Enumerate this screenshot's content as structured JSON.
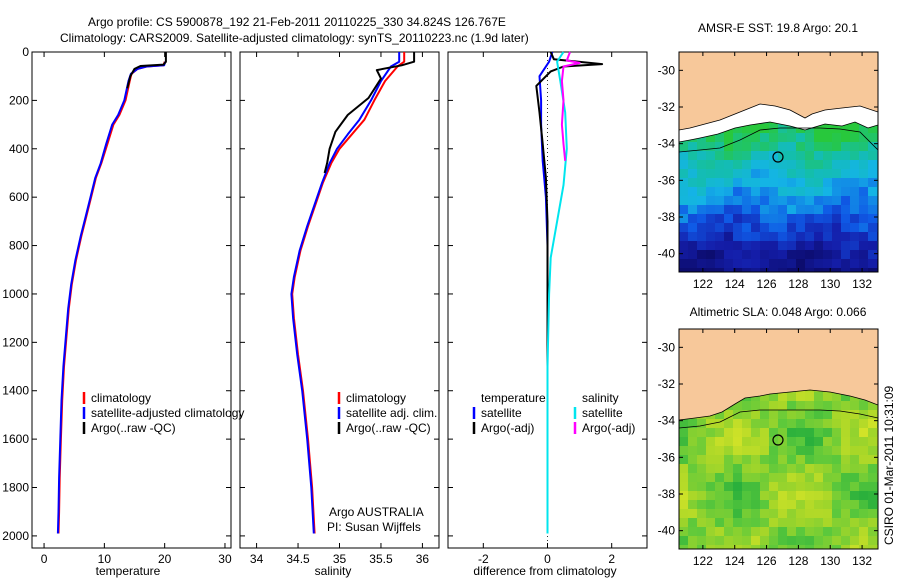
{
  "header": {
    "line1": "Argo profile: CS 5900878_192 21-Feb-2011 20110225_330 34.824S 126.767E",
    "line2": "Climatology: CARS2009. Satellite-adjusted climatology: synTS_20110223.nc (1.9d later)"
  },
  "colors": {
    "climatology": "#ff0000",
    "satellite": "#0000ff",
    "argo": "#000000",
    "sal_satellite": "#00e5ee",
    "sal_argo": "#ff00ff",
    "land": "#f7c89a"
  },
  "footer_note": "CSIRO 01-Mar-2011 10:31:09",
  "chart_data": [
    {
      "type": "line",
      "id": "temperature",
      "xlabel": "temperature",
      "ylabel": "",
      "xlim": [
        -2,
        31
      ],
      "ylim": [
        2050,
        0
      ],
      "y_reversed": true,
      "xticks": [
        "0",
        "10",
        "20",
        "30"
      ],
      "yticks": [
        "0",
        "200",
        "400",
        "600",
        "800",
        "1000",
        "1200",
        "1400",
        "1600",
        "1800",
        "2000"
      ],
      "legend": [
        "climatology",
        "satellite-adjusted climatology",
        "Argo(..raw -QC)"
      ],
      "series": [
        {
          "name": "climatology",
          "color": "#ff0000",
          "points": [
            [
              20.0,
              40
            ],
            [
              19.8,
              55
            ],
            [
              17.0,
              60
            ],
            [
              15.5,
              70
            ],
            [
              14.5,
              90
            ],
            [
              14.2,
              120
            ],
            [
              13.5,
              200
            ],
            [
              12.5,
              260
            ],
            [
              11.5,
              300
            ],
            [
              10.5,
              380
            ],
            [
              9.5,
              460
            ],
            [
              8.6,
              520
            ],
            [
              7.8,
              600
            ],
            [
              7.0,
              680
            ],
            [
              6.2,
              760
            ],
            [
              5.3,
              860
            ],
            [
              4.6,
              960
            ],
            [
              4.1,
              1060
            ],
            [
              3.7,
              1180
            ],
            [
              3.3,
              1300
            ],
            [
              3.0,
              1440
            ],
            [
              2.8,
              1600
            ],
            [
              2.6,
              1760
            ],
            [
              2.5,
              1900
            ],
            [
              2.4,
              1990
            ]
          ]
        },
        {
          "name": "satellite-adjusted climatology",
          "color": "#0000ff",
          "points": [
            [
              20.1,
              40
            ],
            [
              19.9,
              55
            ],
            [
              17.0,
              60
            ],
            [
              15.5,
              70
            ],
            [
              14.4,
              90
            ],
            [
              14.0,
              120
            ],
            [
              13.3,
              200
            ],
            [
              12.3,
              260
            ],
            [
              11.3,
              300
            ],
            [
              10.3,
              380
            ],
            [
              9.4,
              460
            ],
            [
              8.5,
              520
            ],
            [
              7.7,
              600
            ],
            [
              6.9,
              680
            ],
            [
              6.1,
              760
            ],
            [
              5.2,
              860
            ],
            [
              4.5,
              960
            ],
            [
              4.0,
              1060
            ],
            [
              3.6,
              1180
            ],
            [
              3.2,
              1300
            ],
            [
              2.9,
              1440
            ],
            [
              2.7,
              1600
            ],
            [
              2.5,
              1760
            ],
            [
              2.4,
              1900
            ],
            [
              2.3,
              1990
            ]
          ]
        },
        {
          "name": "Argo(..raw -QC)",
          "color": "#000000",
          "points": [
            [
              20.2,
              0
            ],
            [
              20.2,
              40
            ],
            [
              19.8,
              52
            ],
            [
              16.0,
              58
            ],
            [
              15.0,
              70
            ],
            [
              14.3,
              100
            ],
            [
              13.8,
              150
            ]
          ]
        }
      ]
    },
    {
      "type": "line",
      "id": "salinity",
      "xlabel": "salinity",
      "ylabel": "",
      "xlim": [
        33.8,
        36.2
      ],
      "ylim": [
        2050,
        0
      ],
      "y_reversed": true,
      "xticks": [
        "34",
        "34.5",
        "35",
        "35.5",
        "36"
      ],
      "legend": [
        "climatology",
        "satellite adj. clim.",
        "Argo(..raw -QC)"
      ],
      "annotation": [
        "Argo AUSTRALIA",
        "PI: Susan Wijffels"
      ],
      "series": [
        {
          "name": "climatology",
          "color": "#ff0000",
          "points": [
            [
              35.78,
              0
            ],
            [
              35.78,
              40
            ],
            [
              35.7,
              60
            ],
            [
              35.55,
              120
            ],
            [
              35.42,
              200
            ],
            [
              35.3,
              280
            ],
            [
              35.15,
              340
            ],
            [
              35.0,
              400
            ],
            [
              34.9,
              460
            ],
            [
              34.8,
              540
            ],
            [
              34.72,
              620
            ],
            [
              34.62,
              720
            ],
            [
              34.53,
              820
            ],
            [
              34.46,
              930
            ],
            [
              34.43,
              1000
            ],
            [
              34.45,
              1100
            ],
            [
              34.5,
              1250
            ],
            [
              34.56,
              1400
            ],
            [
              34.62,
              1600
            ],
            [
              34.67,
              1800
            ],
            [
              34.7,
              1990
            ]
          ]
        },
        {
          "name": "satellite adj. clim.",
          "color": "#0000ff",
          "points": [
            [
              35.72,
              0
            ],
            [
              35.72,
              40
            ],
            [
              35.62,
              60
            ],
            [
              35.5,
              120
            ],
            [
              35.38,
              200
            ],
            [
              35.24,
              280
            ],
            [
              35.1,
              340
            ],
            [
              34.97,
              400
            ],
            [
              34.88,
              460
            ],
            [
              34.79,
              540
            ],
            [
              34.71,
              620
            ],
            [
              34.61,
              720
            ],
            [
              34.52,
              820
            ],
            [
              34.45,
              930
            ],
            [
              34.42,
              1000
            ],
            [
              34.44,
              1100
            ],
            [
              34.49,
              1250
            ],
            [
              34.55,
              1400
            ],
            [
              34.61,
              1600
            ],
            [
              34.66,
              1800
            ],
            [
              34.69,
              1990
            ]
          ]
        },
        {
          "name": "Argo(..raw -QC)",
          "color": "#000000",
          "points": [
            [
              35.9,
              0
            ],
            [
              35.9,
              40
            ],
            [
              35.75,
              55
            ],
            [
              35.45,
              75
            ],
            [
              35.5,
              110
            ],
            [
              35.35,
              190
            ],
            [
              35.1,
              260
            ],
            [
              34.95,
              330
            ],
            [
              34.88,
              400
            ],
            [
              34.85,
              460
            ],
            [
              34.82,
              500
            ]
          ]
        }
      ]
    },
    {
      "type": "line",
      "id": "difference",
      "xlabel": "difference from climatology",
      "ylabel": "",
      "xlim": [
        -3.1,
        3.1
      ],
      "ylim": [
        2050,
        0
      ],
      "y_reversed": true,
      "xticks": [
        "-2",
        "0",
        "2"
      ],
      "legend": [
        "temperature",
        "satellite",
        "Argo(-adj)",
        "salinity",
        "satellite",
        "Argo(-adj)"
      ],
      "series": [
        {
          "name": "temperature satellite",
          "color": "#0000ff",
          "points": [
            [
              0.15,
              0
            ],
            [
              0.05,
              40
            ],
            [
              -0.25,
              100
            ],
            [
              -0.2,
              200
            ],
            [
              -0.2,
              300
            ],
            [
              -0.15,
              450
            ],
            [
              -0.05,
              600
            ],
            [
              0.0,
              800
            ],
            [
              0.0,
              1000
            ],
            [
              0.0,
              1200
            ],
            [
              0.0,
              1500
            ],
            [
              0.0,
              1800
            ],
            [
              0.0,
              1990
            ]
          ]
        },
        {
          "name": "temperature Argo(-adj)",
          "color": "#000000",
          "points": [
            [
              0.1,
              0
            ],
            [
              0.2,
              30
            ],
            [
              1.7,
              50
            ],
            [
              0.5,
              60
            ],
            [
              0.1,
              80
            ],
            [
              -0.35,
              140
            ],
            [
              -0.25,
              250
            ],
            [
              -0.15,
              380
            ],
            [
              -0.05,
              520
            ],
            [
              0.0,
              700
            ],
            [
              0.0,
              900
            ],
            [
              0.0,
              1200
            ],
            [
              0.0,
              1600
            ],
            [
              0.0,
              1990
            ]
          ]
        },
        {
          "name": "salinity satellite",
          "color": "#00e5ee",
          "points": [
            [
              0.5,
              0
            ],
            [
              0.3,
              40
            ],
            [
              0.4,
              120
            ],
            [
              0.55,
              250
            ],
            [
              0.6,
              400
            ],
            [
              0.5,
              550
            ],
            [
              0.3,
              700
            ],
            [
              0.1,
              850
            ],
            [
              0.05,
              1000
            ],
            [
              0.0,
              1300
            ],
            [
              0.0,
              1600
            ],
            [
              0.0,
              1990
            ]
          ]
        },
        {
          "name": "salinity Argo(-adj)",
          "color": "#ff00ff",
          "points": [
            [
              0.7,
              0
            ],
            [
              0.6,
              35
            ],
            [
              1.0,
              45
            ],
            [
              0.5,
              60
            ],
            [
              0.45,
              120
            ],
            [
              0.5,
              200
            ],
            [
              0.45,
              300
            ],
            [
              0.5,
              380
            ],
            [
              0.55,
              450
            ]
          ]
        }
      ]
    },
    {
      "type": "heatmap",
      "id": "sst_map",
      "title": "AMSR-E SST: 19.8 Argo: 20.1",
      "xlim": [
        120.5,
        133
      ],
      "ylim": [
        -41,
        -29
      ],
      "xticks": [
        "122",
        "124",
        "126",
        "128",
        "130",
        "132"
      ],
      "yticks": [
        "-30",
        "-32",
        "-34",
        "-36",
        "-38",
        "-40"
      ],
      "marker": {
        "lon": 126.767,
        "lat": -34.824
      }
    },
    {
      "type": "heatmap",
      "id": "sla_map",
      "title": "Altimetric SLA: 0.048 Argo: 0.066",
      "xlim": [
        120.5,
        133
      ],
      "ylim": [
        -41,
        -29
      ],
      "xticks": [
        "122",
        "124",
        "126",
        "128",
        "130",
        "132"
      ],
      "yticks": [
        "-30",
        "-32",
        "-34",
        "-36",
        "-38",
        "-40"
      ],
      "marker": {
        "lon": 126.767,
        "lat": -34.824
      }
    }
  ]
}
